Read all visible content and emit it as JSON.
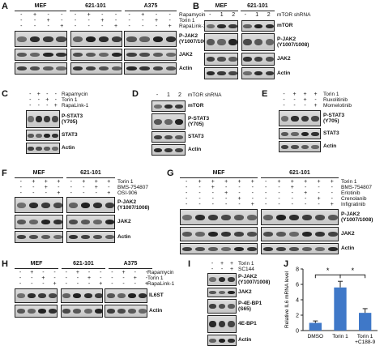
{
  "panels": {
    "A": {
      "label": "A",
      "groups": [
        "MEF",
        "621-101",
        "A375"
      ],
      "treatments": [
        {
          "name": "Rapamycin",
          "signs": [
            "-",
            "+",
            "-",
            "-",
            "-",
            "+",
            "-",
            "-",
            "-",
            "+",
            "-",
            "-"
          ]
        },
        {
          "name": "Torin 1",
          "signs": [
            "-",
            "-",
            "+",
            "-",
            "-",
            "-",
            "+",
            "-",
            "-",
            "-",
            "+",
            "-"
          ]
        },
        {
          "name": "RapaLink-1",
          "signs": [
            "-",
            "-",
            "-",
            "+",
            "-",
            "-",
            "-",
            "+",
            "-",
            "-",
            "-",
            "+"
          ]
        }
      ],
      "blots": [
        "P-JAK2\n(Y1007/1008)",
        "JAK2",
        "Actin"
      ]
    },
    "B": {
      "label": "B",
      "groups": [
        "MEF",
        "621-101"
      ],
      "treatments": [
        {
          "name": "mTOR shRNA",
          "signs": [
            "-",
            "1",
            "2",
            "-",
            "1",
            "2"
          ]
        }
      ],
      "blots": [
        "mTOR",
        "P-JAK2\n(Y1007/1008)",
        "JAK2",
        "Actin"
      ]
    },
    "C": {
      "label": "C",
      "treatments": [
        {
          "name": "Rapamycin",
          "signs": [
            "-",
            "+",
            "-",
            "-"
          ]
        },
        {
          "name": "Torin 1",
          "signs": [
            "-",
            "-",
            "+",
            "-"
          ]
        },
        {
          "name": "RapaLink-1",
          "signs": [
            "-",
            "-",
            "-",
            "+"
          ]
        }
      ],
      "blots": [
        "P-STAT3\n(Y705)",
        "STAT3",
        "Actin"
      ]
    },
    "D": {
      "label": "D",
      "treatments": [
        {
          "name": "mTOR shRNA",
          "signs": [
            "-",
            "1",
            "2"
          ]
        }
      ],
      "blots": [
        "mTOR",
        "P-STAT3\n(Y705)",
        "STAT3",
        "Actin"
      ]
    },
    "E": {
      "label": "E",
      "treatments": [
        {
          "name": "Torin 1",
          "signs": [
            "-",
            "+",
            "+",
            "+"
          ]
        },
        {
          "name": "Ruxolitinib",
          "signs": [
            "-",
            "-",
            "+",
            "-"
          ]
        },
        {
          "name": "Momelotinib",
          "signs": [
            "-",
            "-",
            "-",
            "+"
          ]
        }
      ],
      "blots": [
        "P-STAT3\n(Y705)",
        "STAT3",
        "Actin"
      ]
    },
    "F": {
      "label": "F",
      "groups": [
        "MEF",
        "621-101"
      ],
      "treatments": [
        {
          "name": "Torin 1",
          "signs": [
            "-",
            "+",
            "+",
            "+",
            "-",
            "+",
            "+",
            "+"
          ]
        },
        {
          "name": "BMS-754807",
          "signs": [
            "-",
            "-",
            "+",
            "-",
            "-",
            "-",
            "+",
            "-"
          ]
        },
        {
          "name": "OSI-906",
          "signs": [
            "-",
            "-",
            "-",
            "+",
            "-",
            "-",
            "-",
            "+"
          ]
        }
      ],
      "blots": [
        "P-JAK2\n(Y1007/1008)",
        "JAK2",
        "Actin"
      ]
    },
    "G": {
      "label": "G",
      "groups": [
        "MEF",
        "621-101"
      ],
      "treatments": [
        {
          "name": "Torin 1",
          "signs": [
            "-",
            "+",
            "+",
            "+",
            "+",
            "+",
            "-",
            "+",
            "+",
            "+",
            "+",
            "+"
          ]
        },
        {
          "name": "BMS-754807",
          "signs": [
            "-",
            "-",
            "+",
            "-",
            "-",
            "-",
            "-",
            "-",
            "+",
            "-",
            "-",
            "-"
          ]
        },
        {
          "name": "Erlotinib",
          "signs": [
            "-",
            "-",
            "-",
            "+",
            "-",
            "-",
            "-",
            "-",
            "-",
            "+",
            "-",
            "-"
          ]
        },
        {
          "name": "Crenolanib",
          "signs": [
            "-",
            "-",
            "-",
            "-",
            "+",
            "-",
            "-",
            "-",
            "-",
            "-",
            "+",
            "-"
          ]
        },
        {
          "name": "Infigratinib",
          "signs": [
            "-",
            "-",
            "-",
            "-",
            "-",
            "+",
            "-",
            "-",
            "-",
            "-",
            "-",
            "+"
          ]
        }
      ],
      "blots": [
        "P-JAK2\n(Y1007/1008)",
        "JAK2",
        "Actin"
      ]
    },
    "H": {
      "label": "H",
      "groups": [
        "MEF",
        "621-101",
        "A375"
      ],
      "treatments": [
        {
          "name": "Rapamycin",
          "signs": [
            "-",
            "+",
            "-",
            "-",
            "-",
            "+",
            "-",
            "-",
            "-",
            "+",
            "-",
            "-"
          ]
        },
        {
          "name": "Torin 1",
          "signs": [
            "-",
            "-",
            "+",
            "-",
            "-",
            "-",
            "+",
            "-",
            "-",
            "-",
            "+",
            "-"
          ]
        },
        {
          "name": "RapaLink-1",
          "signs": [
            "-",
            "-",
            "-",
            "+",
            "-",
            "-",
            "-",
            "+",
            "-",
            "-",
            "-",
            "+"
          ]
        }
      ],
      "blots": [
        "IL6ST",
        "Actin"
      ]
    },
    "I": {
      "label": "I",
      "treatments": [
        {
          "name": "Torin 1",
          "signs": [
            "-",
            "+",
            "+"
          ]
        },
        {
          "name": "SC144",
          "signs": [
            "-",
            "-",
            "+"
          ]
        }
      ],
      "blots": [
        "P-JAK2\n(Y1007/1008)",
        "JAK2",
        "P-4E-BP1\n(S65)",
        "4E-BP1",
        "Actin"
      ]
    },
    "J": {
      "label": "J",
      "significance": [
        "*",
        "*"
      ]
    }
  },
  "chart_data": {
    "type": "bar",
    "categories": [
      "DMSO",
      "Torin 1",
      "Torin 1\n+C188-9"
    ],
    "values": [
      1.0,
      5.6,
      2.3
    ],
    "errors": [
      0.25,
      0.8,
      0.55
    ],
    "ylabel": "Relative IL6 mRNA level",
    "ylim": [
      0,
      8
    ],
    "yticks": [
      0,
      2,
      4,
      6,
      8
    ],
    "bar_color": "#3f78c8",
    "grid": false
  }
}
